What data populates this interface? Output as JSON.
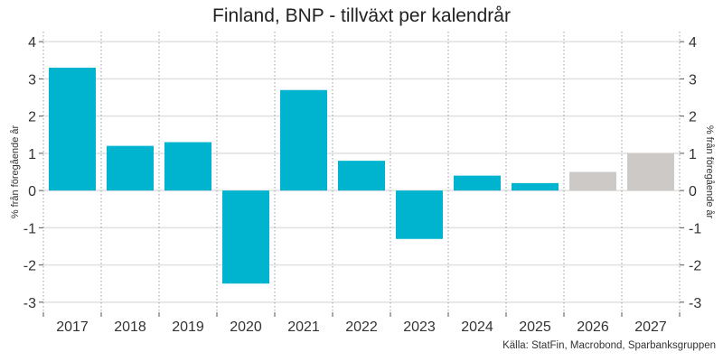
{
  "chart_data": {
    "type": "bar",
    "title": "Finland, BNP - tillväxt per kalendrår",
    "ylabel_left": "% från föregående år",
    "ylabel_right": "% från föregående år",
    "source": "Källa: StatFin, Macrobond, Sparbanksgruppen",
    "categories": [
      "2017",
      "2018",
      "2019",
      "2020",
      "2021",
      "2022",
      "2023",
      "2024",
      "2025",
      "2026",
      "2027"
    ],
    "values": [
      3.3,
      1.2,
      1.3,
      -2.5,
      2.7,
      0.8,
      -1.3,
      0.4,
      0.2,
      0.5,
      1.0
    ],
    "forecast": [
      false,
      false,
      false,
      false,
      false,
      false,
      false,
      false,
      false,
      true,
      true
    ],
    "colors": {
      "actual": "#00b4d0",
      "forecast": "#ccc9c6"
    },
    "yticks": [
      4,
      3,
      2,
      1,
      0,
      -1,
      -2,
      -3
    ],
    "ylim": [
      -3.27,
      4.27
    ],
    "grid": true
  }
}
